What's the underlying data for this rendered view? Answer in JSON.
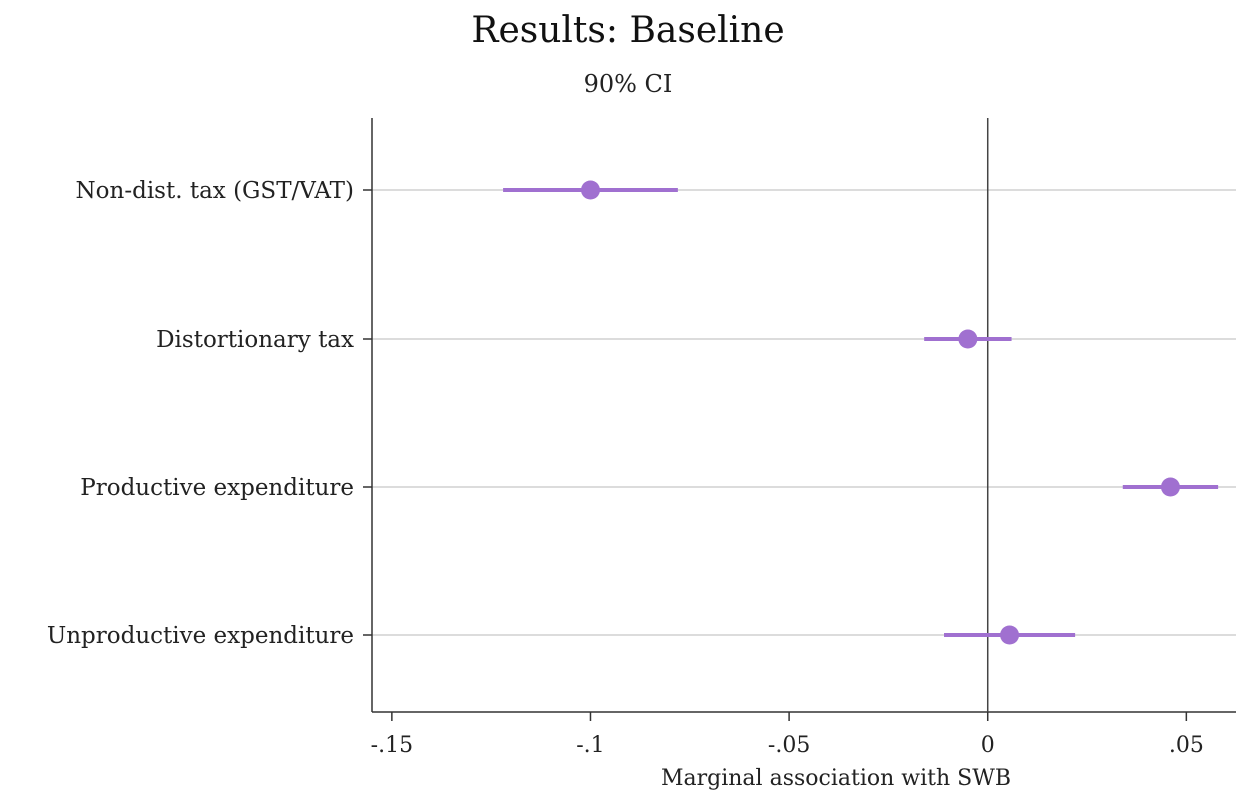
{
  "chart_data": {
    "type": "scatter",
    "subtype": "coefficient-plot",
    "title": "Results: Baseline",
    "subtitle": "90% CI",
    "xlabel": "Marginal association with SWB",
    "ylabel": "",
    "xlim": [
      -0.155,
      0.0625
    ],
    "xticks": [
      -0.15,
      -0.1,
      -0.05,
      0,
      0.05
    ],
    "xtick_labels": [
      "-.15",
      "-.1",
      "-.05",
      "0",
      ".05"
    ],
    "reference_line_x": 0,
    "grid": true,
    "color": "#a070d0",
    "categories": [
      "Non-dist. tax (GST/VAT)",
      "Distortionary tax",
      "Productive expenditure",
      "Unproductive expenditure"
    ],
    "estimates": [
      -0.1,
      -0.005,
      0.046,
      0.0055
    ],
    "ci_lower": [
      -0.122,
      -0.016,
      0.034,
      -0.011
    ],
    "ci_upper": [
      -0.078,
      0.006,
      0.058,
      0.022
    ]
  }
}
